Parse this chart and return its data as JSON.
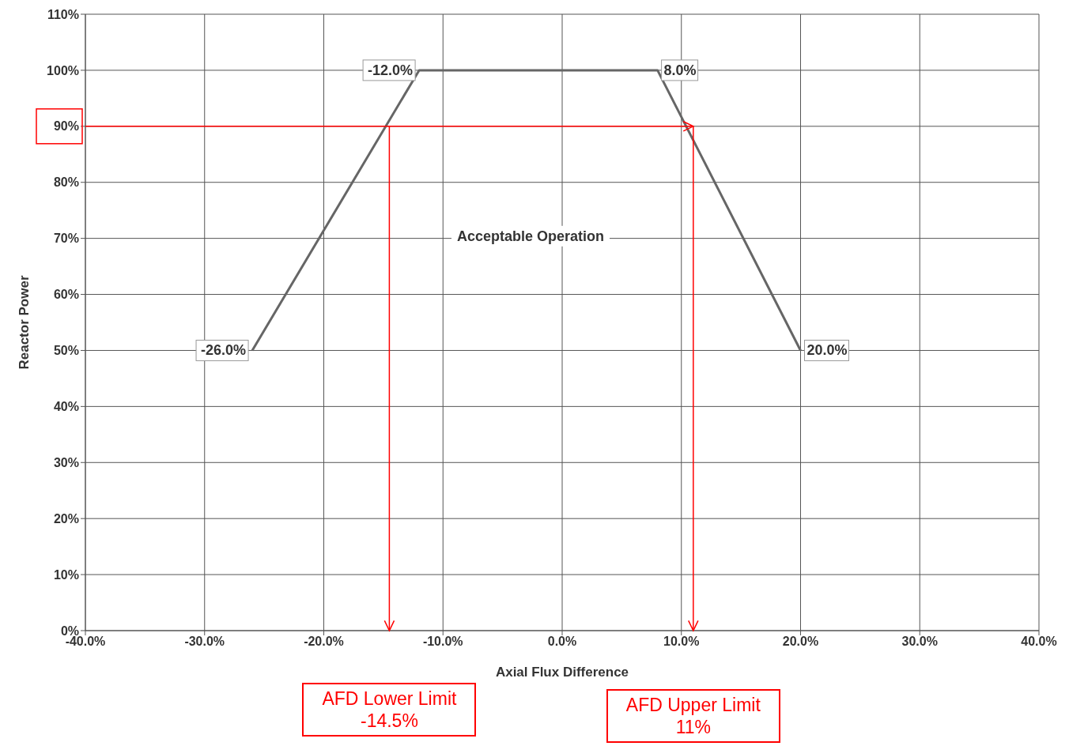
{
  "chart_data": {
    "type": "line",
    "xlabel": "Axial Flux Difference",
    "ylabel": "Reactor Power",
    "xlim": [
      -40,
      40
    ],
    "ylim": [
      0,
      110
    ],
    "xticks": [
      {
        "value": -40,
        "label": "-40.0%"
      },
      {
        "value": -30,
        "label": "-30.0%"
      },
      {
        "value": -20,
        "label": "-20.0%"
      },
      {
        "value": -10,
        "label": "-10.0%"
      },
      {
        "value": 0,
        "label": "0.0%"
      },
      {
        "value": 10,
        "label": "10.0%"
      },
      {
        "value": 20,
        "label": "20.0%"
      },
      {
        "value": 30,
        "label": "30.0%"
      },
      {
        "value": 40,
        "label": "40.0%"
      }
    ],
    "yticks": [
      {
        "value": 0,
        "label": "0%"
      },
      {
        "value": 10,
        "label": "10%"
      },
      {
        "value": 20,
        "label": "20%"
      },
      {
        "value": 30,
        "label": "30%"
      },
      {
        "value": 40,
        "label": "40%"
      },
      {
        "value": 50,
        "label": "50%"
      },
      {
        "value": 60,
        "label": "60%"
      },
      {
        "value": 70,
        "label": "70%"
      },
      {
        "value": 80,
        "label": "80%"
      },
      {
        "value": 90,
        "label": "90%"
      },
      {
        "value": 100,
        "label": "100%"
      },
      {
        "value": 110,
        "label": "110%"
      }
    ],
    "grid": true,
    "series": [
      {
        "color": "#666666",
        "x": [
          -26,
          -12,
          8,
          20
        ],
        "values": [
          50,
          100,
          100,
          50
        ]
      }
    ],
    "annotations": [
      {
        "text": "-26.0%",
        "x": -26,
        "y": 50
      },
      {
        "text": "-12.0%",
        "x": -12,
        "y": 100
      },
      {
        "text": "8.0%",
        "x": 8,
        "y": 100
      },
      {
        "text": "20.0%",
        "x": 20,
        "y": 50
      },
      "Acceptable Operation",
      "AFD Lower Limit -14.5%",
      "AFD Upper Limit 11%"
    ],
    "ref_lines": [
      {
        "axis": "y",
        "value": 90,
        "color": "#ff0000"
      },
      {
        "axis": "x",
        "value": -14.5,
        "color": "#ff0000"
      },
      {
        "axis": "x",
        "value": 11,
        "color": "#ff0000"
      }
    ]
  }
}
